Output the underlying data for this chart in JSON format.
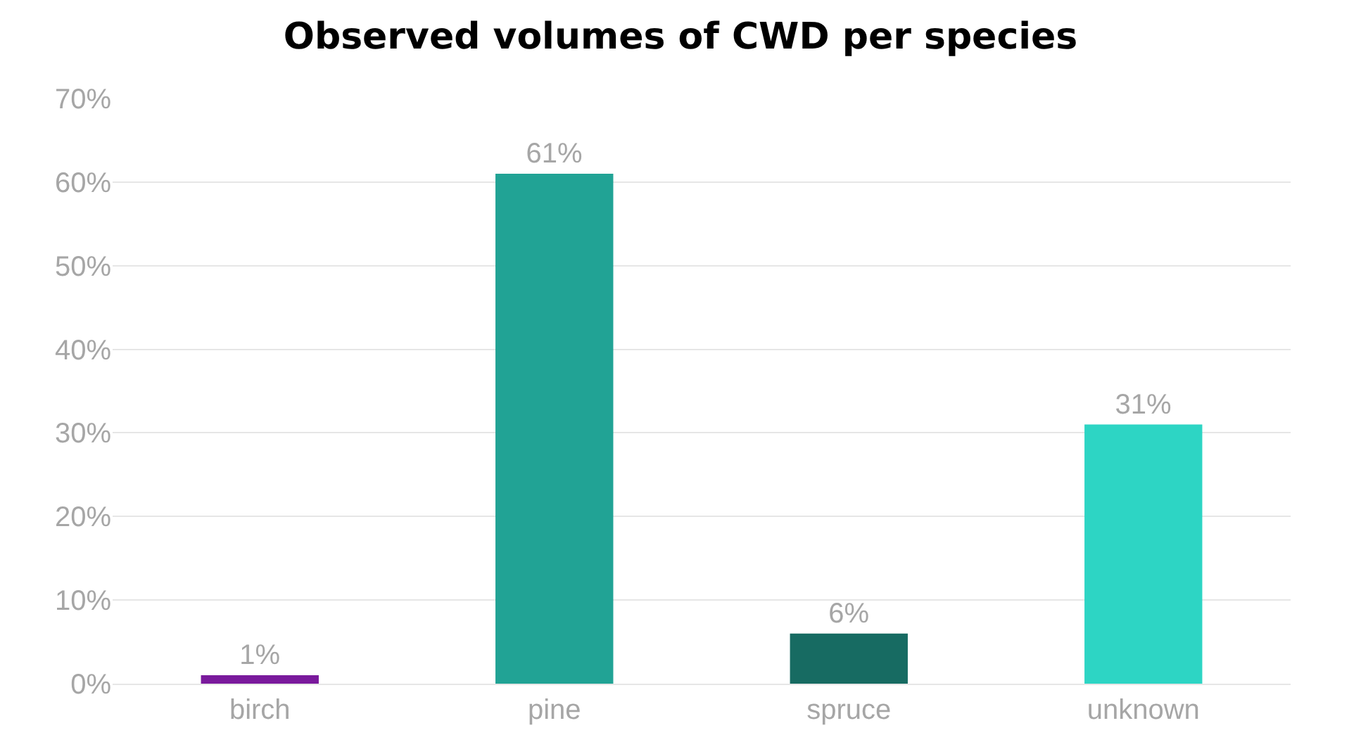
{
  "chart_data": {
    "type": "bar",
    "title": "Observed volumes of CWD per species",
    "categories": [
      "birch",
      "pine",
      "spruce",
      "unknown"
    ],
    "values": [
      1,
      61,
      6,
      31
    ],
    "colors": [
      "#7a1a9c",
      "#21a395",
      "#176b62",
      "#2dd5c4"
    ],
    "value_labels": [
      "1%",
      "61%",
      "6%",
      "31%"
    ],
    "ylim": [
      0,
      70
    ],
    "yticks": [
      {
        "value": 0,
        "label": "0%"
      },
      {
        "value": 10,
        "label": "10%"
      },
      {
        "value": 20,
        "label": "20%"
      },
      {
        "value": 30,
        "label": "30%"
      },
      {
        "value": 40,
        "label": "40%"
      },
      {
        "value": 50,
        "label": "50%"
      },
      {
        "value": 60,
        "label": "60%"
      },
      {
        "value": 70,
        "label": "70%"
      }
    ],
    "grid": "y",
    "legend": false
  }
}
